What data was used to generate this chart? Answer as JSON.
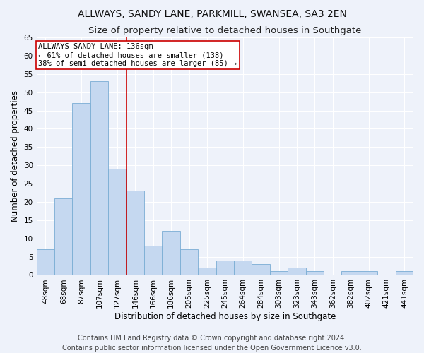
{
  "title": "ALLWAYS, SANDY LANE, PARKMILL, SWANSEA, SA3 2EN",
  "subtitle": "Size of property relative to detached houses in Southgate",
  "xlabel": "Distribution of detached houses by size in Southgate",
  "ylabel": "Number of detached properties",
  "categories": [
    "48sqm",
    "68sqm",
    "87sqm",
    "107sqm",
    "127sqm",
    "146sqm",
    "166sqm",
    "186sqm",
    "205sqm",
    "225sqm",
    "245sqm",
    "264sqm",
    "284sqm",
    "303sqm",
    "323sqm",
    "343sqm",
    "362sqm",
    "382sqm",
    "402sqm",
    "421sqm",
    "441sqm"
  ],
  "values": [
    7,
    21,
    47,
    53,
    29,
    23,
    8,
    12,
    7,
    2,
    4,
    4,
    3,
    1,
    2,
    1,
    0,
    1,
    1,
    0,
    1
  ],
  "bar_color": "#c5d8f0",
  "bar_edge_color": "#7aadd4",
  "bar_width": 1.0,
  "ylim": [
    0,
    65
  ],
  "yticks": [
    0,
    5,
    10,
    15,
    20,
    25,
    30,
    35,
    40,
    45,
    50,
    55,
    60,
    65
  ],
  "property_line_x": 4.5,
  "annotation_text": "ALLWAYS SANDY LANE: 136sqm\n← 61% of detached houses are smaller (138)\n38% of semi-detached houses are larger (85) →",
  "annotation_box_color": "#ffffff",
  "annotation_box_edge": "#cc0000",
  "vline_color": "#cc0000",
  "footer_line1": "Contains HM Land Registry data © Crown copyright and database right 2024.",
  "footer_line2": "Contains public sector information licensed under the Open Government Licence v3.0.",
  "bg_color": "#eef2fa",
  "plot_bg_color": "#eef2fa",
  "grid_color": "#ffffff",
  "title_fontsize": 10,
  "subtitle_fontsize": 9.5,
  "label_fontsize": 8.5,
  "tick_fontsize": 7.5,
  "annotation_fontsize": 7.5,
  "footer_fontsize": 7
}
